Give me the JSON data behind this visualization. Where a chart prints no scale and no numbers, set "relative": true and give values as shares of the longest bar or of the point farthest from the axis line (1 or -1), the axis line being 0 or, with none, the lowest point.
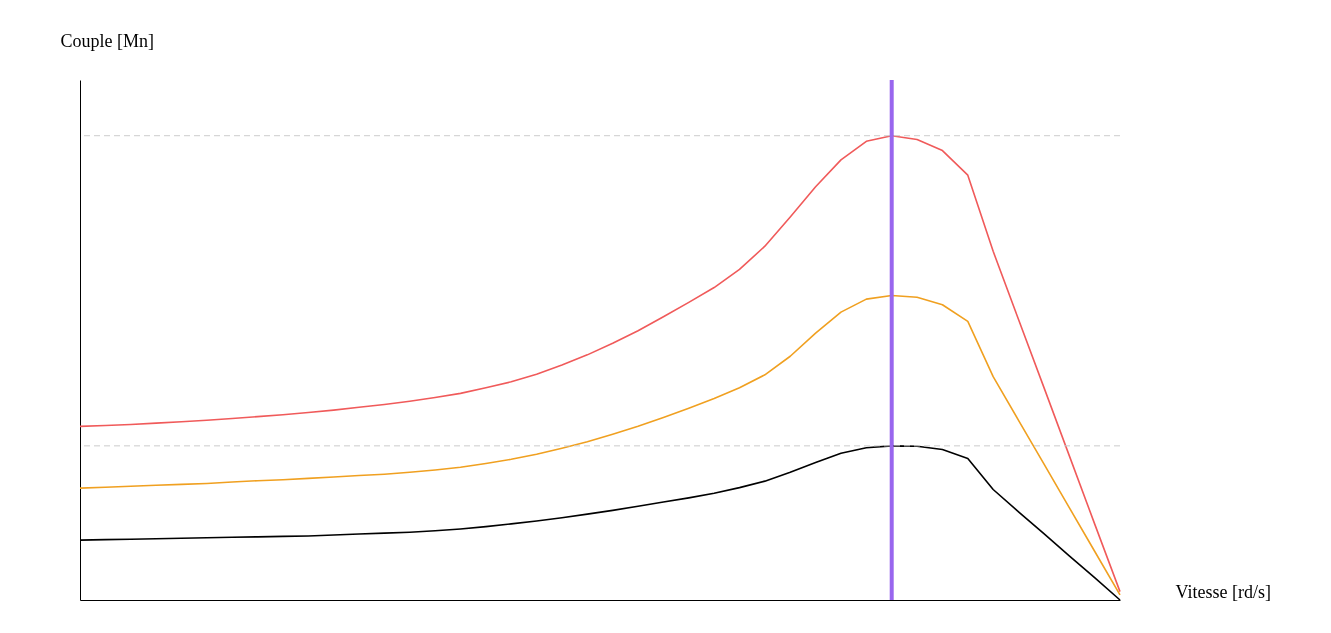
{
  "chart_data": {
    "type": "line",
    "relative": true,
    "xlabel": "Vitesse [rd/s]",
    "ylabel": "Couple [Mn]",
    "categories": [
      null,
      null,
      null,
      null,
      null,
      null,
      null,
      null,
      null,
      null,
      null,
      null,
      null,
      null,
      null,
      null,
      null,
      null,
      null,
      null,
      null,
      null,
      null,
      null,
      null,
      null,
      null,
      null,
      null,
      null,
      null,
      null,
      null,
      null,
      null,
      null,
      null,
      null,
      null,
      null,
      null,
      null
    ],
    "series": [
      {
        "color": "#f05a5a",
        "values": [
          0.374,
          0.376,
          0.378,
          0.381,
          0.384,
          0.387,
          0.391,
          0.395,
          0.399,
          0.404,
          0.409,
          0.415,
          0.421,
          0.428,
          0.436,
          0.445,
          0.457,
          0.47,
          0.486,
          0.506,
          0.528,
          0.553,
          0.58,
          0.61,
          0.641,
          0.673,
          0.712,
          0.762,
          0.825,
          0.89,
          0.948,
          0.988,
          1,
          0.992,
          0.968,
          0.915,
          0.751,
          0.604,
          0.458,
          0.311,
          0.164,
          0.018
        ]
      },
      {
        "color": "#f0a020",
        "values": [
          0.241,
          0.243,
          0.245,
          0.247,
          0.249,
          0.251,
          0.254,
          0.257,
          0.259,
          0.262,
          0.265,
          0.268,
          0.271,
          0.275,
          0.28,
          0.286,
          0.294,
          0.303,
          0.314,
          0.327,
          0.341,
          0.357,
          0.374,
          0.393,
          0.413,
          0.434,
          0.457,
          0.485,
          0.525,
          0.575,
          0.62,
          0.648,
          0.656,
          0.652,
          0.636,
          0.6,
          0.481,
          0.387,
          0.293,
          0.199,
          0.105,
          0.011
        ]
      },
      {
        "color": "#000000",
        "values": [
          0.129,
          0.13,
          0.131,
          0.132,
          0.133,
          0.134,
          0.135,
          0.136,
          0.137,
          0.138,
          0.14,
          0.142,
          0.144,
          0.146,
          0.149,
          0.153,
          0.158,
          0.164,
          0.17,
          0.177,
          0.185,
          0.193,
          0.202,
          0.211,
          0.22,
          0.23,
          0.242,
          0.256,
          0.275,
          0.296,
          0.316,
          0.328,
          0.332,
          0.331,
          0.324,
          0.305,
          0.238,
          0.19,
          0.143,
          0.095,
          0.048,
          0
        ]
      }
    ],
    "ref_lines": [
      {
        "axis": "y",
        "value": 1,
        "color": "#cccccc",
        "line_style": "dashed"
      },
      {
        "axis": "y",
        "value": 0.332,
        "color": "#cccccc",
        "line_style": "dashed"
      }
    ],
    "grid": false,
    "marker": "none",
    "line_style": "solid"
  }
}
